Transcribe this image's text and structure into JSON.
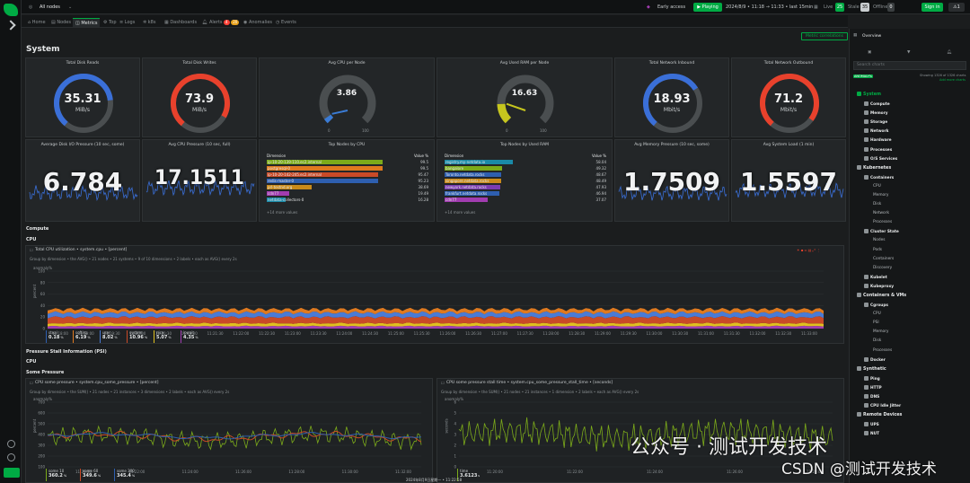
{
  "topbar": {
    "space": "All nodes",
    "early": "Early access",
    "playing": "Playing",
    "time": "2024/8/9 • 11:18 → 11:33 • last 15min",
    "live_label": "Live",
    "live": "25",
    "stale_label": "Stale",
    "stale": "35",
    "offline_label": "Offline",
    "offline": "0",
    "signin": "Sign in",
    "alerts": "1"
  },
  "tabs": [
    {
      "label": "Home"
    },
    {
      "label": "Nodes"
    },
    {
      "label": "Metrics"
    },
    {
      "label": "Top"
    },
    {
      "label": "Logs"
    },
    {
      "label": "k8s"
    },
    {
      "label": "Dashboards"
    },
    {
      "label": "Alerts",
      "badge1": "4",
      "badge2": "20"
    },
    {
      "label": "Anomalies"
    },
    {
      "label": "Events"
    }
  ],
  "main": {
    "title": "System",
    "metric_correlations": "Metric correlations",
    "compute": "Compute",
    "cpu": "CPU",
    "psi": "Pressure Stall Information (PSI)",
    "psi_cpu": "CPU",
    "some_pressure": "Some Pressure"
  },
  "gauges": [
    {
      "title": "Total Disk Reads",
      "value": "35.31",
      "unit": "MiB/s",
      "color": "#3a6fd8",
      "fill": 0.62
    },
    {
      "title": "Total Disk Writes",
      "value": "73.9",
      "unit": "MiB/s",
      "color": "#e8412c",
      "fill": 0.72
    },
    {
      "title": "Avg CPU per Node",
      "value": "3.86",
      "min": "0",
      "max": "100",
      "color": "#3a7bd5",
      "fill": 0.04
    },
    {
      "title": "Avg Used RAM per Node",
      "value": "16.63",
      "min": "0",
      "max": "100",
      "color": "#c6c61e",
      "fill": 0.16
    },
    {
      "title": "Total Network Inbound",
      "value": "18.93",
      "unit": "Mbit/s",
      "color": "#3a6fd8",
      "fill": 0.55
    },
    {
      "title": "Total Network Outbound",
      "value": "71.2",
      "unit": "Mbit/s",
      "color": "#e8412c",
      "fill": 0.74
    }
  ],
  "numbers": [
    {
      "title": "Average Disk I/O Pressure (10 sec, some)",
      "value": "6.784"
    },
    {
      "title": "Avg CPU Pressure (10 sec, full)",
      "value": "17.1511"
    },
    {
      "title": "Avg Memory Pressure (10 sec, some)",
      "value": "1.7509"
    },
    {
      "title": "Avg System Load (1 min)",
      "value": "1.5597"
    }
  ],
  "top_cpu": {
    "title": "Top Nodes by CPU",
    "col1": "Dimension",
    "col2": "Value %",
    "more": "+14 more values",
    "rows": [
      {
        "name": "ip-10-20-139-110.ec2.internal",
        "value": "99.5",
        "fill": 0.995,
        "color": "#7cab1a"
      },
      {
        "name": "postgresql-0",
        "value": "99.5",
        "fill": 0.995,
        "color": "#e07a1f"
      },
      {
        "name": "ip-10-20-142-245.ec2.internal",
        "value": "95.47",
        "fill": 0.9547,
        "color": "#c94a27"
      },
      {
        "name": "redis-master-0",
        "value": "95.23",
        "fill": 0.9523,
        "color": "#2e5fb0"
      },
      {
        "name": "prl-testnd.org",
        "value": "38.69",
        "fill": 0.3869,
        "color": "#c98a1a"
      },
      {
        "name": "cdn77",
        "value": "19.49",
        "fill": 0.1949,
        "color": "#a13cb0"
      },
      {
        "name": "netdata-collectors-0",
        "value": "16.28",
        "fill": 0.1628,
        "color": "#1a8aa8"
      }
    ]
  },
  "top_ram": {
    "title": "Top Nodes by Used RAM",
    "col1": "Dimension",
    "col2": "Value %",
    "more": "+14 more values",
    "rows": [
      {
        "name": "registry.my-netdata.io",
        "value": "58.04",
        "fill": 0.5804,
        "color": "#1a8aa8"
      },
      {
        "name": "bangalore",
        "value": "49.32",
        "fill": 0.4932,
        "color": "#7cab1a"
      },
      {
        "name": "Toronto.netdata.rocks",
        "value": "48.67",
        "fill": 0.4867,
        "color": "#2e5fb0"
      },
      {
        "name": "singapore.netdata.rocks",
        "value": "48.49",
        "fill": 0.4849,
        "color": "#c98a1a"
      },
      {
        "name": "newyork.netdata.rocks",
        "value": "47.93",
        "fill": 0.4793,
        "color": "#7a3cb0"
      },
      {
        "name": "frankfurt.netdata.rocks",
        "value": "46.94",
        "fill": 0.4694,
        "color": "#2e5fb0"
      },
      {
        "name": "cdn77",
        "value": "37.07",
        "fill": 0.3707,
        "color": "#a13cb0"
      }
    ]
  },
  "cpu_chart": {
    "title": "Total CPU utilization • system.cpu • [percent]",
    "sub": "Group by dimension • the AVG() • 21 nodes • 21 systems • 9 of 10 dimensions • 2 labels • each as AVG() every 2s",
    "ylabel": "percent",
    "yunit": "anomaly%",
    "yticks": [
      "100",
      "80",
      "60",
      "40",
      "20",
      "0"
    ],
    "xticks": [
      "11:18:00",
      "11:19:00",
      "11:19:30",
      "11:20:00",
      "11:20:30",
      "11:21:00",
      "11:21:30",
      "11:22:00",
      "11:22:30",
      "11:23:00",
      "11:23:30",
      "11:24:00",
      "11:24:30",
      "11:25:00",
      "11:25:30",
      "11:26:00",
      "11:26:30",
      "11:27:00",
      "11:27:30",
      "11:28:00",
      "11:28:30",
      "11:29:00",
      "11:29:30",
      "11:30:00",
      "11:30:30",
      "11:31:00",
      "11:31:30",
      "11:32:00",
      "11:32:30",
      "11:33:00"
    ],
    "legend": [
      {
        "name": "steal",
        "value": "0.18",
        "unit": "%",
        "color": "#2e5fb0"
      },
      {
        "name": "softirq",
        "value": "6.19",
        "unit": "%",
        "color": "#e07a1f"
      },
      {
        "name": "user",
        "value": "8.02",
        "unit": "%",
        "color": "#4a7bd5"
      },
      {
        "name": "system",
        "value": "10.96",
        "unit": "%",
        "color": "#c94a27"
      },
      {
        "name": "nice",
        "value": "5.07",
        "unit": "%",
        "color": "#e0c01f"
      },
      {
        "name": "iowait",
        "value": "4.35",
        "unit": "%",
        "color": "#a13cb0"
      }
    ]
  },
  "psi_left": {
    "title": "CPU some pressure • system.cpu_some_pressure • [percent]",
    "sub": "Group by dimension • the SUM() • 21 nodes • 21 instances • 3 dimensions • 2 labels • each as AVG() every 2s",
    "ylabel": "percent",
    "yunit": "anomaly%",
    "yticks": [
      "700",
      "600",
      "500",
      "400",
      "300",
      "200",
      "100"
    ],
    "xticks": [
      "11:20:00",
      "11:22:00",
      "11:24:00",
      "11:26:00",
      "11:28:00",
      "11:30:00",
      "11:32:00"
    ],
    "legend": [
      {
        "name": "some 10",
        "value": "360.2",
        "unit": "%",
        "color": "#7cab1a"
      },
      {
        "name": "some 60",
        "value": "349.6",
        "unit": "%",
        "color": "#c94a27"
      },
      {
        "name": "some 300",
        "value": "345.4",
        "unit": "%",
        "color": "#2e5fb0"
      }
    ]
  },
  "psi_right": {
    "title": "CPU some pressure stall time • system.cpu_some_pressure_stall_time • [seconds]",
    "sub": "Group by dimension • the SUM() • 21 nodes • 21 instances • 1 dimension • 2 labels • each as AVG() every 2s",
    "ylabel": "seconds",
    "yunit": "anomaly%",
    "yticks": [
      "6",
      "5",
      "4",
      "3",
      "2",
      "1",
      "0"
    ],
    "xticks": [
      "11:20:00",
      "11:22:00",
      "11:24:00",
      "11:26:00",
      "11:28:00"
    ],
    "legend": [
      {
        "name": "time",
        "value": "3.6123",
        "unit": "s",
        "color": "#7cab1a"
      }
    ]
  },
  "footer_time": "2024年8月9日星期一 • 11:22:58",
  "rp": {
    "overview": "Overview",
    "search": "Search charts",
    "anomaly": "ANOMALY%",
    "showing": "Showing 1326 of 1326 charts",
    "add": "Add more charts",
    "items": [
      {
        "l": "System",
        "lvl": 0,
        "hl": 1
      },
      {
        "l": "Compute",
        "lvl": 1
      },
      {
        "l": "Memory",
        "lvl": 1
      },
      {
        "l": "Storage",
        "lvl": 1
      },
      {
        "l": "Network",
        "lvl": 1
      },
      {
        "l": "Hardware",
        "lvl": 1
      },
      {
        "l": "Processes",
        "lvl": 1
      },
      {
        "l": "O/S Services",
        "lvl": 1
      },
      {
        "l": "Kubernetes",
        "lvl": 0
      },
      {
        "l": "Containers",
        "lvl": 1
      },
      {
        "l": "CPU",
        "lvl": 2
      },
      {
        "l": "Memory",
        "lvl": 2
      },
      {
        "l": "Disk",
        "lvl": 2
      },
      {
        "l": "Network",
        "lvl": 2
      },
      {
        "l": "Processes",
        "lvl": 2
      },
      {
        "l": "Cluster State",
        "lvl": 1
      },
      {
        "l": "Nodes",
        "lvl": 2
      },
      {
        "l": "Pods",
        "lvl": 2
      },
      {
        "l": "Containers",
        "lvl": 2
      },
      {
        "l": "Discovery",
        "lvl": 2
      },
      {
        "l": "Kubelet",
        "lvl": 1
      },
      {
        "l": "Kubeproxy",
        "lvl": 1
      },
      {
        "l": "Containers & VMs",
        "lvl": 0
      },
      {
        "l": "Cgroups",
        "lvl": 1
      },
      {
        "l": "CPU",
        "lvl": 2
      },
      {
        "l": "PSI",
        "lvl": 2
      },
      {
        "l": "Memory",
        "lvl": 2
      },
      {
        "l": "Disk",
        "lvl": 2
      },
      {
        "l": "Processes",
        "lvl": 2
      },
      {
        "l": "Docker",
        "lvl": 1
      },
      {
        "l": "Synthetic",
        "lvl": 0
      },
      {
        "l": "Ping",
        "lvl": 1
      },
      {
        "l": "HTTP",
        "lvl": 1
      },
      {
        "l": "DNS",
        "lvl": 1
      },
      {
        "l": "CPU Idle Jitter",
        "lvl": 1
      },
      {
        "l": "Remote Devices",
        "lvl": 0
      },
      {
        "l": "UPS",
        "lvl": 1
      },
      {
        "l": "NUT",
        "lvl": 1
      }
    ]
  },
  "watermark": {
    "wechat": "公众号 · 测试开发技术",
    "csdn": "CSDN @测试开发技术"
  }
}
